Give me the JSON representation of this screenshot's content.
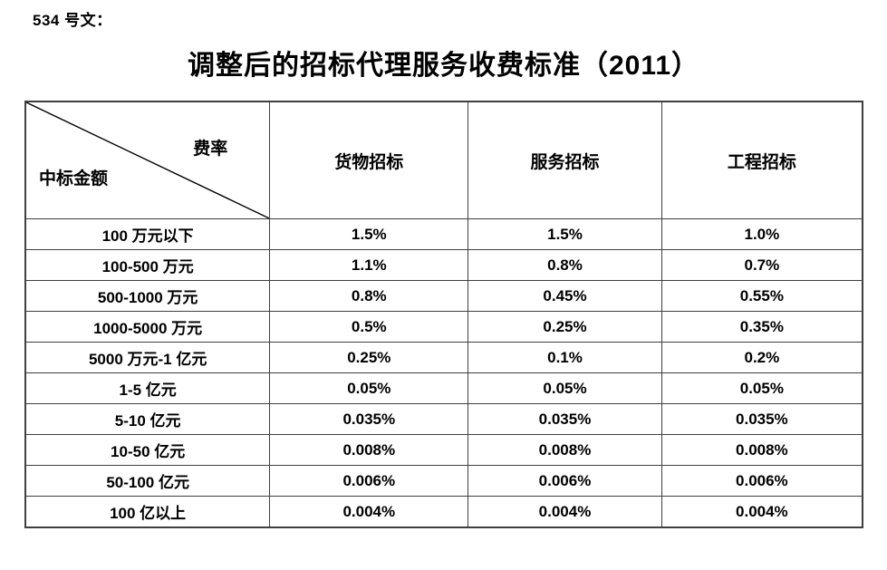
{
  "doc": {
    "doc_number": "534 号文：",
    "title": "调整后的招标代理服务收费标准（2011）"
  },
  "table": {
    "corner": {
      "top_right": "费率",
      "bottom_left": "中标金额"
    },
    "columns": [
      "货物招标",
      "服务招标",
      "工程招标"
    ],
    "rows": [
      {
        "label": "100 万元以下",
        "values": [
          "1.5%",
          "1.5%",
          "1.0%"
        ]
      },
      {
        "label": "100-500 万元",
        "values": [
          "1.1%",
          "0.8%",
          "0.7%"
        ]
      },
      {
        "label": "500-1000 万元",
        "values": [
          "0.8%",
          "0.45%",
          "0.55%"
        ]
      },
      {
        "label": "1000-5000 万元",
        "values": [
          "0.5%",
          "0.25%",
          "0.35%"
        ]
      },
      {
        "label": "5000 万元-1 亿元",
        "values": [
          "0.25%",
          "0.1%",
          "0.2%"
        ]
      },
      {
        "label": "1-5 亿元",
        "values": [
          "0.05%",
          "0.05%",
          "0.05%"
        ]
      },
      {
        "label": "5-10 亿元",
        "values": [
          "0.035%",
          "0.035%",
          "0.035%"
        ]
      },
      {
        "label": "10-50 亿元",
        "values": [
          "0.008%",
          "0.008%",
          "0.008%"
        ]
      },
      {
        "label": "50-100 亿元",
        "values": [
          "0.006%",
          "0.006%",
          "0.006%"
        ]
      },
      {
        "label": "100 亿以上",
        "values": [
          "0.004%",
          "0.004%",
          "0.004%"
        ]
      }
    ]
  },
  "colors": {
    "text": "#000000",
    "border": "#3f3f3f",
    "background": "#ffffff"
  }
}
